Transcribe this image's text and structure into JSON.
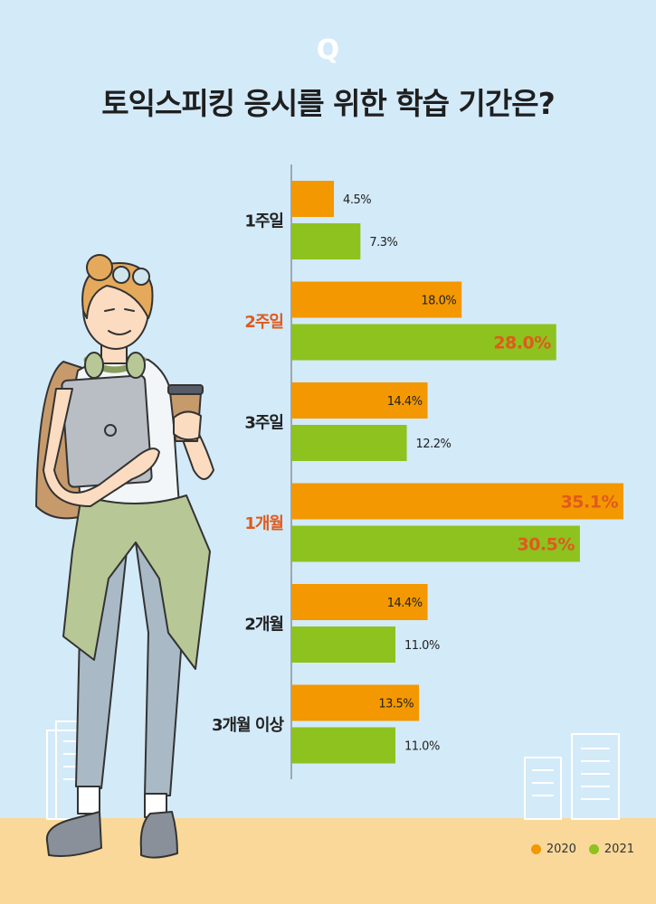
{
  "header": {
    "q_mark": "Q",
    "title": "토익스피킹 응시를 위한 학습 기간은?"
  },
  "colors": {
    "y2020": "#f39800",
    "y2021": "#8dc21f",
    "highlight": "#e05a1c",
    "label": "#222222"
  },
  "chart_data": {
    "type": "bar",
    "orientation": "horizontal",
    "title": "토익스피킹 응시를 위한 학습 기간은?",
    "categories": [
      "1주일",
      "2주일",
      "3주일",
      "1개월",
      "2개월",
      "3개월 이상"
    ],
    "highlighted_categories": [
      "2주일",
      "1개월"
    ],
    "series": [
      {
        "name": "2020",
        "values": [
          4.5,
          18.0,
          14.4,
          35.1,
          14.4,
          13.5
        ],
        "labels": [
          "4.5%",
          "18.0%",
          "14.4%",
          "35.1%",
          "14.4%",
          "13.5%"
        ]
      },
      {
        "name": "2021",
        "values": [
          7.3,
          28.0,
          12.2,
          30.5,
          11.0,
          11.0
        ],
        "labels": [
          "7.3%",
          "28.0%",
          "12.2%",
          "30.5%",
          "11.0%",
          "11.0%"
        ]
      }
    ],
    "unit": "%",
    "xlim": [
      0,
      36
    ],
    "legend_position": "bottom-right",
    "grid": false
  }
}
